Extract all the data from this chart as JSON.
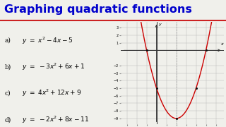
{
  "title": "Graphing quadratic functions",
  "title_color": "#0000cc",
  "title_fontsize": 11.5,
  "bg_color": "#f0f0eb",
  "title_underline_color": "#cc2222",
  "equations": [
    {
      "label": "a)",
      "math": "y = x^{2} - 4x - 5"
    },
    {
      "label": "b)",
      "math": "y = -3x^{2} + 6x + 1"
    },
    {
      "label": "c)",
      "math": "y = 4x^{2} + 12x + 9"
    },
    {
      "label": "d)",
      "math": "y = -2x^{2} + 8x - 11"
    }
  ],
  "graph": {
    "xlim": [
      -3.6,
      6.8
    ],
    "ylim": [
      -9.8,
      3.8
    ],
    "xticks": [
      -3,
      -2,
      -1,
      1,
      2,
      3,
      4,
      5,
      6
    ],
    "yticks": [
      -9,
      -8,
      -7,
      -6,
      -5,
      -4,
      -3,
      -2,
      1,
      2,
      3
    ],
    "axis_of_symmetry": 2,
    "curve_color": "#cc0000",
    "dot_color": "#111111",
    "dot_points": [
      [
        -1,
        0
      ],
      [
        5,
        0
      ],
      [
        2,
        -9
      ],
      [
        0,
        -5
      ],
      [
        4,
        -5
      ]
    ],
    "x_label": "x",
    "y_label": "y",
    "grid_color": "#bbbbbb",
    "axis_color": "#333333"
  }
}
